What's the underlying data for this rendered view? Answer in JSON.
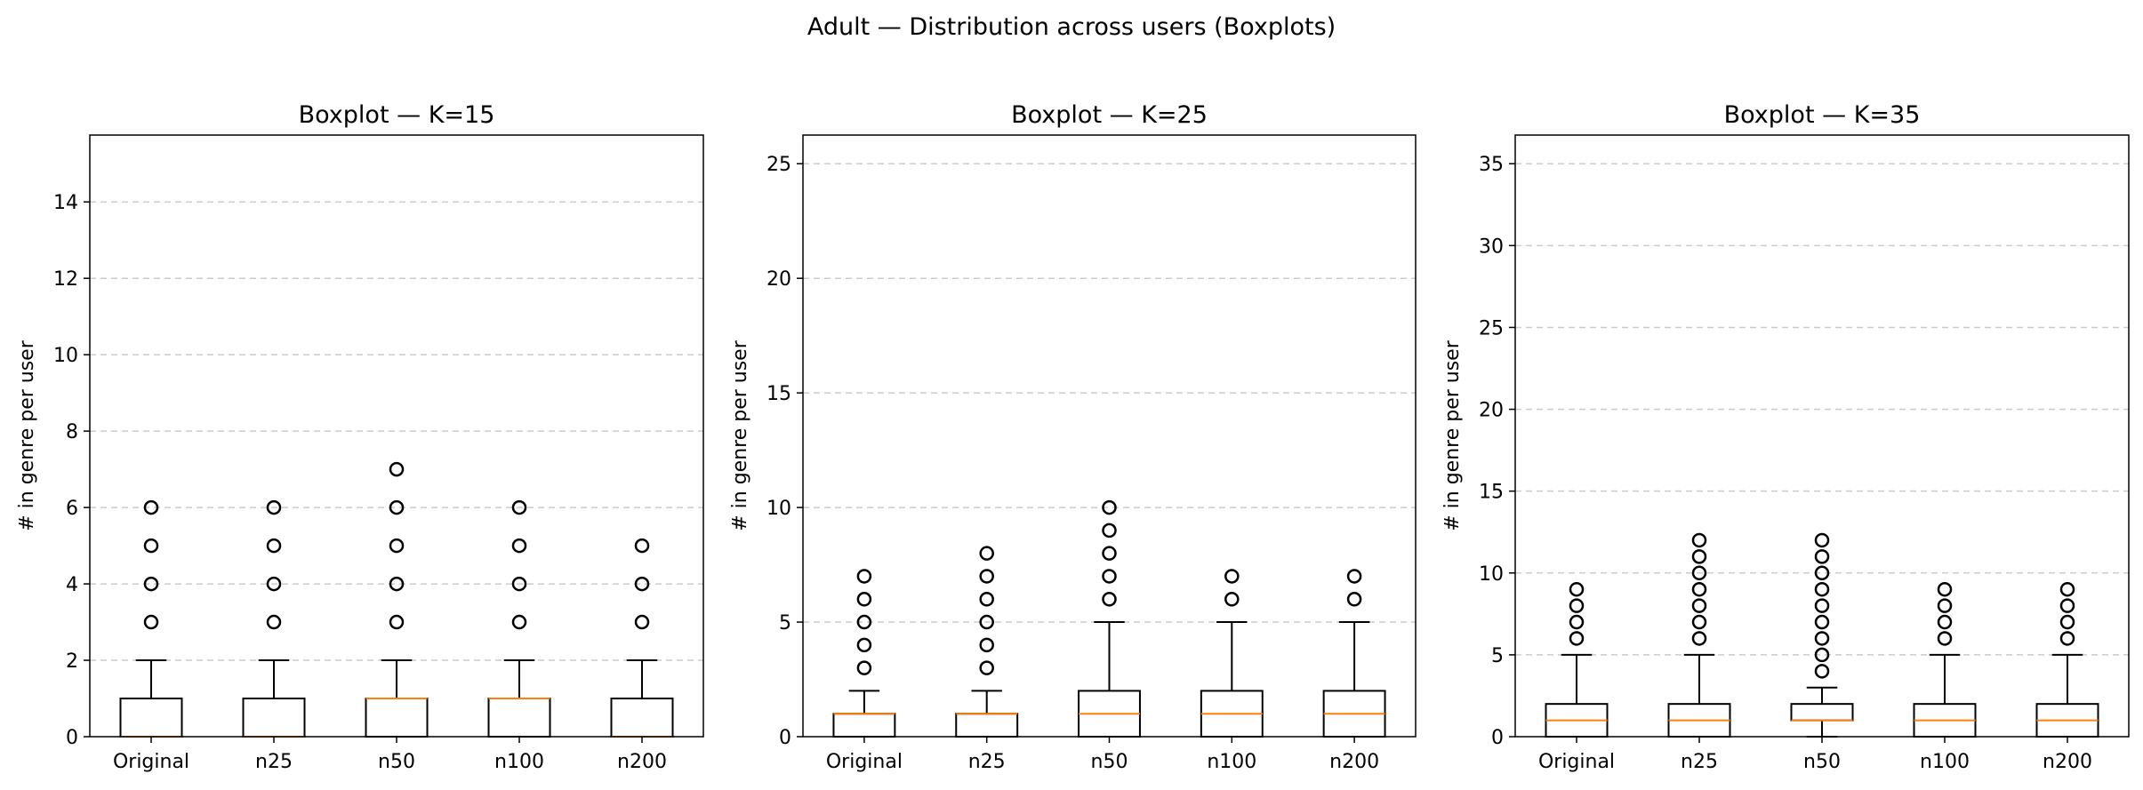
{
  "suptitle": "Adult — Distribution across users (Boxplots)",
  "colors": {
    "box": "#000000",
    "median": "#ff7f0e",
    "grid": "#cccccc",
    "background": "#ffffff"
  },
  "chart_data": [
    {
      "type": "boxplot",
      "title": "Boxplot — K=15",
      "xlabel": "",
      "ylabel": "# in genre per user",
      "ylim": [
        0,
        15.75
      ],
      "yticks": [
        0,
        2,
        4,
        6,
        8,
        10,
        12,
        14
      ],
      "grid": "y-dashed",
      "categories": [
        "Original",
        "n25",
        "n50",
        "n100",
        "n200"
      ],
      "boxes": [
        {
          "label": "Original",
          "whislo": 0,
          "q1": 0,
          "median": 0,
          "q3": 1,
          "whishi": 2,
          "fliers": [
            3,
            4,
            5,
            6
          ]
        },
        {
          "label": "n25",
          "whislo": 0,
          "q1": 0,
          "median": 0,
          "q3": 1,
          "whishi": 2,
          "fliers": [
            3,
            4,
            5,
            6
          ]
        },
        {
          "label": "n50",
          "whislo": 0,
          "q1": 0,
          "median": 1,
          "q3": 1,
          "whishi": 2,
          "fliers": [
            3,
            4,
            5,
            6,
            7
          ]
        },
        {
          "label": "n100",
          "whislo": 0,
          "q1": 0,
          "median": 1,
          "q3": 1,
          "whishi": 2,
          "fliers": [
            3,
            4,
            5,
            6
          ]
        },
        {
          "label": "n200",
          "whislo": 0,
          "q1": 0,
          "median": 0,
          "q3": 1,
          "whishi": 2,
          "fliers": [
            3,
            4,
            5
          ]
        }
      ]
    },
    {
      "type": "boxplot",
      "title": "Boxplot — K=25",
      "xlabel": "",
      "ylabel": "# in genre per user",
      "ylim": [
        0,
        26.25
      ],
      "yticks": [
        0,
        5,
        10,
        15,
        20,
        25
      ],
      "grid": "y-dashed",
      "categories": [
        "Original",
        "n25",
        "n50",
        "n100",
        "n200"
      ],
      "boxes": [
        {
          "label": "Original",
          "whislo": 0,
          "q1": 0,
          "median": 1,
          "q3": 1,
          "whishi": 2,
          "fliers": [
            3,
            4,
            5,
            6,
            7
          ]
        },
        {
          "label": "n25",
          "whislo": 0,
          "q1": 0,
          "median": 1,
          "q3": 1,
          "whishi": 2,
          "fliers": [
            3,
            4,
            5,
            6,
            7,
            8
          ]
        },
        {
          "label": "n50",
          "whislo": 0,
          "q1": 0,
          "median": 1,
          "q3": 2,
          "whishi": 5,
          "fliers": [
            6,
            7,
            8,
            9,
            10
          ]
        },
        {
          "label": "n100",
          "whislo": 0,
          "q1": 0,
          "median": 1,
          "q3": 2,
          "whishi": 5,
          "fliers": [
            6,
            7
          ]
        },
        {
          "label": "n200",
          "whislo": 0,
          "q1": 0,
          "median": 1,
          "q3": 2,
          "whishi": 5,
          "fliers": [
            6,
            7
          ]
        }
      ]
    },
    {
      "type": "boxplot",
      "title": "Boxplot — K=35",
      "xlabel": "",
      "ylabel": "# in genre per user",
      "ylim": [
        0,
        36.75
      ],
      "yticks": [
        0,
        5,
        10,
        15,
        20,
        25,
        30,
        35
      ],
      "grid": "y-dashed",
      "categories": [
        "Original",
        "n25",
        "n50",
        "n100",
        "n200"
      ],
      "boxes": [
        {
          "label": "Original",
          "whislo": 0,
          "q1": 0,
          "median": 1,
          "q3": 2,
          "whishi": 5,
          "fliers": [
            6,
            7,
            8,
            9
          ]
        },
        {
          "label": "n25",
          "whislo": 0,
          "q1": 0,
          "median": 1,
          "q3": 2,
          "whishi": 5,
          "fliers": [
            6,
            7,
            8,
            9,
            10,
            11,
            12
          ]
        },
        {
          "label": "n50",
          "whislo": 0,
          "q1": 1,
          "median": 1,
          "q3": 2,
          "whishi": 3,
          "fliers": [
            4,
            5,
            6,
            7,
            8,
            9,
            10,
            11,
            12
          ]
        },
        {
          "label": "n100",
          "whislo": 0,
          "q1": 0,
          "median": 1,
          "q3": 2,
          "whishi": 5,
          "fliers": [
            6,
            7,
            8,
            9
          ]
        },
        {
          "label": "n200",
          "whislo": 0,
          "q1": 0,
          "median": 1,
          "q3": 2,
          "whishi": 5,
          "fliers": [
            6,
            7,
            8,
            9
          ]
        }
      ]
    }
  ]
}
